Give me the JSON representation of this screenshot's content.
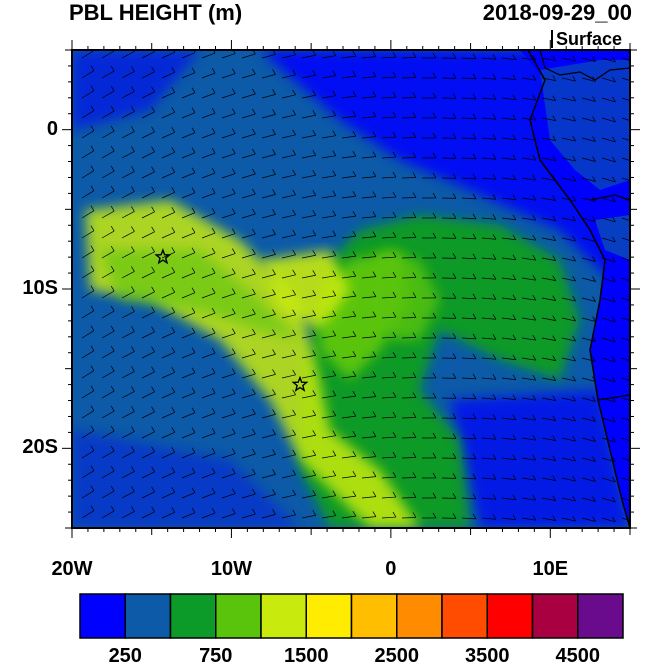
{
  "title": {
    "left": "PBL HEIGHT (m)",
    "right": "2018-09-29_00"
  },
  "level_label": "Surface",
  "map": {
    "lon_range": [
      -20,
      15
    ],
    "lat_range": [
      -25,
      5
    ],
    "lon_ticks": [
      {
        "value": -20,
        "label": "20W"
      },
      {
        "value": -10,
        "label": "10W"
      },
      {
        "value": 0,
        "label": "0"
      },
      {
        "value": 10,
        "label": "10E"
      }
    ],
    "lat_ticks": [
      {
        "value": 0,
        "label": "0"
      },
      {
        "value": -10,
        "label": "10S"
      },
      {
        "value": -20,
        "label": "20S"
      }
    ],
    "stars": [
      {
        "lon": -14.3,
        "lat": -8.0,
        "name": "star-marker-ascension-area"
      },
      {
        "lon": -5.7,
        "lat": -16.0,
        "name": "star-marker-st-helena"
      }
    ]
  },
  "colorbar": {
    "colors": [
      "#0000ff",
      "#0c5aa8",
      "#0c9a28",
      "#5ac40c",
      "#c8ea0c",
      "#ffec00",
      "#ffbe00",
      "#ff8c00",
      "#ff4c00",
      "#ff0000",
      "#a80040",
      "#6a0a8c"
    ],
    "labels": [
      "250",
      "750",
      "1500",
      "2500",
      "3500",
      "4500"
    ]
  }
}
